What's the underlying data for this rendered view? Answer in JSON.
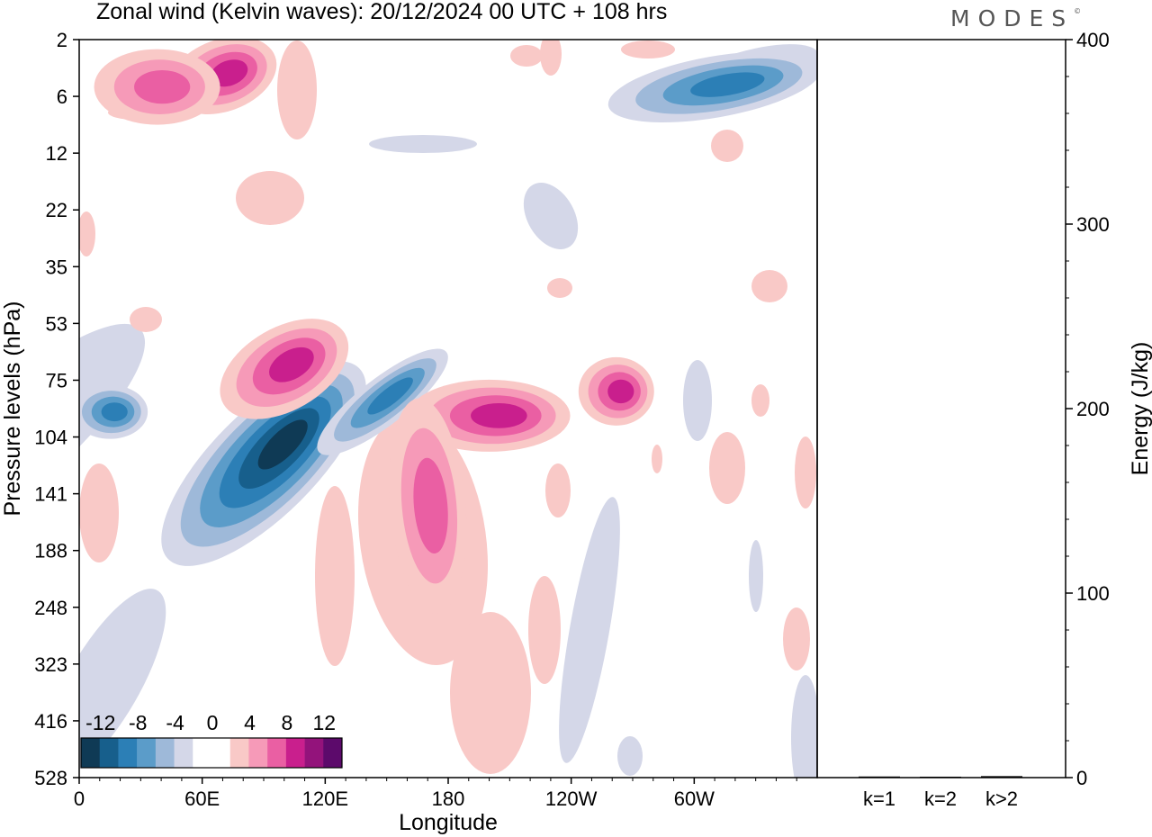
{
  "brand": "MODES",
  "chart_data": [
    {
      "type": "heatmap",
      "title": "Zonal wind (Kelvin waves):  20/12/2024  00 UTC  + 108 hrs",
      "xlabel": "Longitude",
      "ylabel": "Pressure levels (hPa)",
      "x_ticks": [
        "0",
        "60E",
        "120E",
        "180",
        "120W",
        "60W"
      ],
      "x_tick_degrees": [
        0,
        60,
        120,
        180,
        240,
        300
      ],
      "xlim": [
        0,
        360
      ],
      "y_ticks": [
        "2",
        "6",
        "12",
        "22",
        "35",
        "53",
        "75",
        "104",
        "141",
        "188",
        "248",
        "323",
        "416",
        "528"
      ],
      "colorbar": {
        "labels": [
          "-12",
          "-8",
          "-4",
          "0",
          "4",
          "8",
          "12"
        ],
        "levels": [
          -14,
          -12,
          -10,
          -8,
          -6,
          -4,
          -2,
          0,
          2,
          4,
          6,
          8,
          10,
          12,
          14
        ],
        "colors": [
          "#0f3a55",
          "#175f8c",
          "#2c7fb6",
          "#5b9cc9",
          "#9eb9d9",
          "#d4d7e8",
          "#ffffff",
          "#ffffff",
          "#f9c9c7",
          "#f69ab8",
          "#ea5fa3",
          "#c91f8d",
          "#93137b",
          "#5c0a6b"
        ]
      },
      "features": [
        {
          "sign": "negative",
          "peak": -13,
          "lon": 90,
          "level_hpa": 120
        },
        {
          "sign": "negative",
          "peak": -8,
          "lon": 148,
          "level_hpa": 85
        },
        {
          "sign": "negative",
          "peak": -8,
          "lon": 15,
          "level_hpa": 90
        },
        {
          "sign": "negative",
          "peak": -8,
          "lon": 310,
          "level_hpa": 5
        },
        {
          "sign": "positive",
          "peak": 8,
          "lon": 100,
          "level_hpa": 70
        },
        {
          "sign": "positive",
          "peak": 8,
          "lon": 200,
          "level_hpa": 92
        },
        {
          "sign": "positive",
          "peak": 8,
          "lon": 262,
          "level_hpa": 80
        },
        {
          "sign": "positive",
          "peak": 6,
          "lon": 170,
          "level_hpa": 150
        },
        {
          "sign": "positive",
          "peak": 8,
          "lon": 70,
          "level_hpa": 4
        },
        {
          "sign": "positive",
          "peak": 6,
          "lon": 38,
          "level_hpa": 5
        }
      ]
    },
    {
      "type": "bar",
      "ylabel": "Energy (J/kg)",
      "categories": [
        "k=1",
        "k=2",
        "k>2"
      ],
      "values": [
        0.6,
        0.5,
        0.8
      ],
      "ylim": [
        0,
        400
      ],
      "y_ticks": [
        "0",
        "100",
        "200",
        "300",
        "400"
      ]
    }
  ]
}
